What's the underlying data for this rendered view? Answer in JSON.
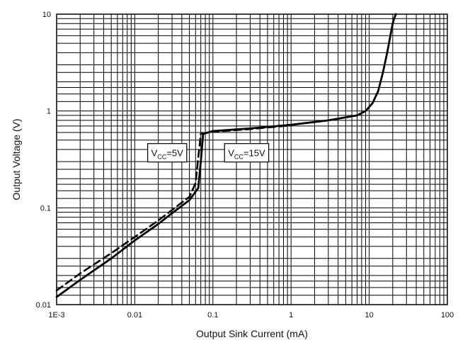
{
  "chart_data": {
    "type": "line",
    "title": "",
    "xlabel": "Output Sink Current (mA)",
    "ylabel": "Output Voltage (V)",
    "x_scale": "log",
    "y_scale": "log",
    "xlim": [
      0.001,
      100
    ],
    "ylim": [
      0.01,
      10
    ],
    "grid": true,
    "x_ticks": [
      {
        "value": 0.001,
        "label": "1E-3"
      },
      {
        "value": 0.01,
        "label": "0.01"
      },
      {
        "value": 0.1,
        "label": "0.1"
      },
      {
        "value": 1,
        "label": "1"
      },
      {
        "value": 10,
        "label": "10"
      },
      {
        "value": 100,
        "label": "100"
      }
    ],
    "y_ticks": [
      {
        "value": 0.01,
        "label": "0.01"
      },
      {
        "value": 0.1,
        "label": "0.1"
      },
      {
        "value": 1,
        "label": "1"
      },
      {
        "value": 10,
        "label": "10"
      }
    ],
    "series": [
      {
        "style": "solid",
        "color": "#000000",
        "x": [
          0.001,
          0.002,
          0.005,
          0.01,
          0.02,
          0.03,
          0.05,
          0.065,
          0.07,
          0.075,
          0.1,
          0.3,
          1,
          3,
          7,
          9,
          11,
          13,
          15,
          17,
          19,
          20,
          21,
          22
        ],
        "y": [
          0.012,
          0.018,
          0.03,
          0.046,
          0.068,
          0.088,
          0.12,
          0.16,
          0.3,
          0.58,
          0.62,
          0.66,
          0.72,
          0.8,
          0.9,
          1.0,
          1.2,
          1.6,
          2.5,
          4,
          6.5,
          8,
          9.2,
          10
        ]
      },
      {
        "style": "dashed",
        "color": "#000000",
        "x": [
          0.001,
          0.002,
          0.005,
          0.01,
          0.02,
          0.03,
          0.05,
          0.06,
          0.065,
          0.07,
          0.1,
          0.3,
          1
        ],
        "y": [
          0.014,
          0.021,
          0.034,
          0.05,
          0.074,
          0.095,
          0.13,
          0.18,
          0.33,
          0.58,
          0.61,
          0.65,
          0.71
        ]
      }
    ],
    "annotations": [
      {
        "main": "V",
        "sub": "CC",
        "rest": "=5V",
        "anchor_x": 0.026,
        "anchor_y": 0.37
      },
      {
        "main": "V",
        "sub": "CC",
        "rest": "=15V",
        "anchor_x": 0.27,
        "anchor_y": 0.37
      }
    ]
  }
}
